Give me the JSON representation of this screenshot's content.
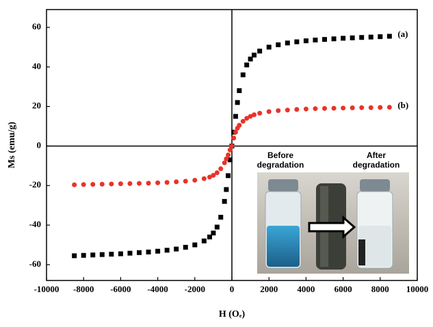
{
  "chart_data": {
    "type": "scatter",
    "x_label": "H (Oₑ)",
    "y_label": "Ms (emu/g)",
    "x": [
      -8500,
      -8000,
      -7500,
      -7000,
      -6500,
      -6000,
      -5500,
      -5000,
      -4500,
      -4000,
      -3500,
      -3000,
      -2500,
      -2000,
      -1500,
      -1200,
      -1000,
      -800,
      -600,
      -400,
      -300,
      -200,
      -100,
      0,
      100,
      200,
      300,
      400,
      600,
      800,
      1000,
      1200,
      1500,
      2000,
      2500,
      3000,
      3500,
      4000,
      4500,
      5000,
      5500,
      6000,
      6500,
      7000,
      7500,
      8000,
      8500
    ],
    "series": [
      {
        "name": "(a)",
        "color": "#000000",
        "marker": "square",
        "values": [
          -55.5,
          -55.3,
          -55.1,
          -54.9,
          -54.7,
          -54.5,
          -54.2,
          -53.9,
          -53.6,
          -53.2,
          -52.7,
          -52.1,
          -51.2,
          -50.0,
          -48.0,
          -46.0,
          -44.0,
          -41.0,
          -36.0,
          -28.0,
          -22.0,
          -15.0,
          -7.0,
          0,
          7.0,
          15.0,
          22.0,
          28.0,
          36.0,
          41.0,
          44.0,
          46.0,
          48.0,
          50.0,
          51.2,
          52.1,
          52.7,
          53.2,
          53.6,
          53.9,
          54.2,
          54.5,
          54.7,
          54.9,
          55.1,
          55.3,
          55.5
        ]
      },
      {
        "name": "(b)",
        "color": "#e8332a",
        "marker": "circle",
        "values": [
          -19.6,
          -19.5,
          -19.4,
          -19.3,
          -19.2,
          -19.1,
          -19.0,
          -18.9,
          -18.8,
          -18.6,
          -18.4,
          -18.1,
          -17.8,
          -17.3,
          -16.5,
          -15.7,
          -14.8,
          -13.5,
          -11.5,
          -8.5,
          -6.5,
          -4.5,
          -2.0,
          0,
          4.0,
          7.0,
          9.0,
          10.5,
          12.5,
          14.0,
          15.0,
          15.8,
          16.6,
          17.4,
          17.9,
          18.2,
          18.5,
          18.7,
          18.9,
          19.0,
          19.1,
          19.2,
          19.3,
          19.4,
          19.4,
          19.5,
          19.6
        ]
      }
    ],
    "xlim": [
      -10000,
      10000
    ],
    "xticks": [
      -10000,
      -8000,
      -6000,
      -4000,
      -2000,
      0,
      2000,
      4000,
      6000,
      8000,
      10000
    ],
    "ylim": [
      -68,
      69
    ],
    "yticks": [
      -60,
      -40,
      -20,
      0,
      20,
      40,
      60
    ],
    "inset": {
      "before": [
        "Before",
        "degradation"
      ],
      "after": [
        "After",
        "degradation"
      ]
    }
  }
}
